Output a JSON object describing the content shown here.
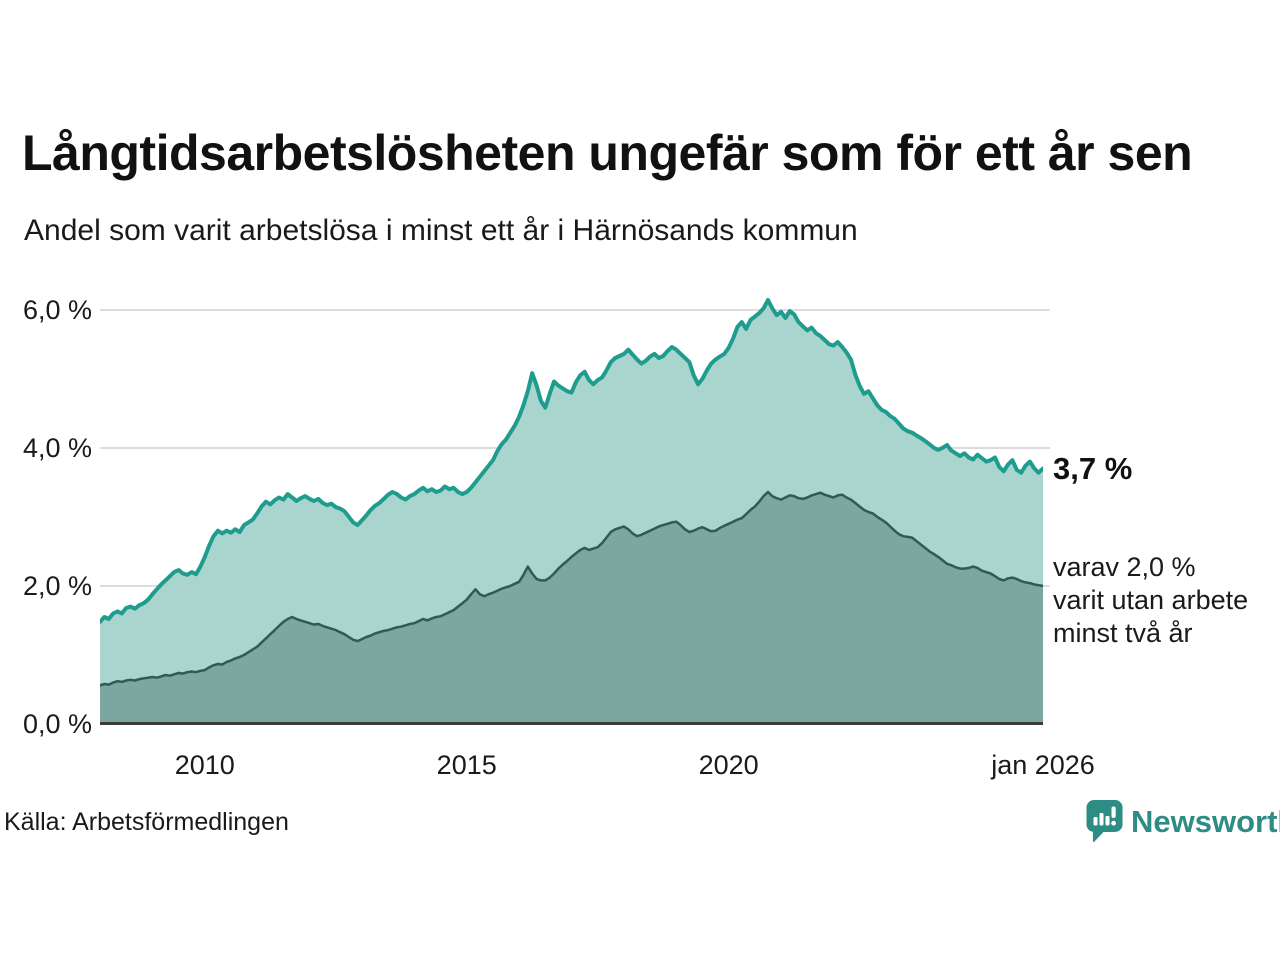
{
  "title": "Långtidsarbetslösheten ungefär som för ett år sen",
  "subtitle": "Andel som varit arbetslösa i minst ett år i Härnösands kommun",
  "source": "Källa: Arbetsförmedlingen",
  "branding": {
    "name": "Newsworthy",
    "icon": "bar-chart-speech-bubble-icon",
    "color": "#2d8c84"
  },
  "annotations": {
    "latest_total": "3,7 %",
    "secondary": "varav 2,0 %\nvarit utan arbete\nminst två år"
  },
  "colors": {
    "background": "#ffffff",
    "gridline": "#dcdcdc",
    "axis": "#3c3c3c",
    "series1_line": "#1e9c8e",
    "series1_fill": "#a9d5ce",
    "series2_line": "#2f5b55",
    "series2_fill": "#7ba7a0",
    "text": "#1a1a1a",
    "brand": "#2d8c84"
  },
  "chart_data": {
    "type": "area",
    "title": "Långtidsarbetslösheten ungefär som för ett år sen",
    "subtitle": "Andel som varit arbetslösa i minst ett år i Härnösands kommun",
    "unit": "%",
    "xlim": [
      2008,
      2026
    ],
    "ylim": [
      0,
      6.43
    ],
    "grid": "horizontal",
    "legend": "none",
    "x_axis": {
      "ticks": [
        {
          "label": "2010",
          "year": 2010
        },
        {
          "label": "2015",
          "year": 2015
        },
        {
          "label": "2020",
          "year": 2020
        },
        {
          "label": "jan 2026",
          "year": 2026
        }
      ]
    },
    "y_axis": {
      "ticks": [
        {
          "label": "0,0 %",
          "value": 0
        },
        {
          "label": "2,0 %",
          "value": 2
        },
        {
          "label": "4,0 %",
          "value": 4
        },
        {
          "label": "6,0 %",
          "value": 6
        }
      ]
    },
    "series": [
      {
        "name": "Andel arbetslösa minst ett år",
        "latest_value": 3.7,
        "start_year": 2008,
        "interval_months": 1,
        "values": [
          1.48,
          1.55,
          1.52,
          1.6,
          1.63,
          1.6,
          1.68,
          1.7,
          1.67,
          1.72,
          1.75,
          1.8,
          1.88,
          1.95,
          2.02,
          2.08,
          2.14,
          2.2,
          2.23,
          2.18,
          2.16,
          2.2,
          2.17,
          2.28,
          2.42,
          2.58,
          2.72,
          2.8,
          2.76,
          2.8,
          2.77,
          2.82,
          2.78,
          2.88,
          2.92,
          2.96,
          3.05,
          3.15,
          3.22,
          3.18,
          3.24,
          3.28,
          3.25,
          3.33,
          3.28,
          3.23,
          3.27,
          3.3,
          3.26,
          3.23,
          3.26,
          3.2,
          3.17,
          3.19,
          3.14,
          3.12,
          3.08,
          3.0,
          2.92,
          2.88,
          2.95,
          3.02,
          3.1,
          3.16,
          3.2,
          3.26,
          3.32,
          3.36,
          3.33,
          3.28,
          3.25,
          3.3,
          3.33,
          3.38,
          3.42,
          3.37,
          3.4,
          3.36,
          3.38,
          3.44,
          3.4,
          3.42,
          3.36,
          3.33,
          3.36,
          3.42,
          3.5,
          3.58,
          3.66,
          3.74,
          3.82,
          3.95,
          4.05,
          4.12,
          4.22,
          4.32,
          4.45,
          4.62,
          4.82,
          5.08,
          4.9,
          4.68,
          4.58,
          4.78,
          4.96,
          4.9,
          4.86,
          4.82,
          4.8,
          4.95,
          5.05,
          5.1,
          4.98,
          4.92,
          4.98,
          5.02,
          5.12,
          5.24,
          5.3,
          5.33,
          5.36,
          5.42,
          5.35,
          5.28,
          5.22,
          5.26,
          5.32,
          5.36,
          5.3,
          5.33,
          5.4,
          5.46,
          5.42,
          5.36,
          5.3,
          5.24,
          5.05,
          4.92,
          5.0,
          5.12,
          5.22,
          5.28,
          5.32,
          5.36,
          5.45,
          5.58,
          5.75,
          5.82,
          5.72,
          5.85,
          5.9,
          5.95,
          6.02,
          6.14,
          6.02,
          5.92,
          5.97,
          5.88,
          5.98,
          5.93,
          5.82,
          5.76,
          5.7,
          5.74,
          5.66,
          5.62,
          5.56,
          5.5,
          5.48,
          5.53,
          5.46,
          5.38,
          5.28,
          5.06,
          4.9,
          4.78,
          4.82,
          4.72,
          4.62,
          4.55,
          4.52,
          4.46,
          4.42,
          4.35,
          4.28,
          4.24,
          4.22,
          4.18,
          4.14,
          4.1,
          4.05,
          4.0,
          3.97,
          4.0,
          4.04,
          3.96,
          3.92,
          3.88,
          3.92,
          3.86,
          3.83,
          3.9,
          3.85,
          3.8,
          3.82,
          3.86,
          3.72,
          3.66,
          3.76,
          3.82,
          3.68,
          3.64,
          3.74,
          3.8,
          3.7,
          3.64,
          3.7
        ]
      },
      {
        "name": "varav utan arbete minst två år",
        "latest_value": 2.0,
        "start_year": 2008,
        "interval_months": 1,
        "values": [
          0.56,
          0.58,
          0.57,
          0.6,
          0.62,
          0.61,
          0.63,
          0.64,
          0.63,
          0.65,
          0.66,
          0.67,
          0.68,
          0.67,
          0.69,
          0.71,
          0.7,
          0.72,
          0.74,
          0.73,
          0.75,
          0.76,
          0.75,
          0.77,
          0.78,
          0.82,
          0.85,
          0.87,
          0.86,
          0.9,
          0.92,
          0.95,
          0.97,
          1.0,
          1.04,
          1.08,
          1.12,
          1.18,
          1.24,
          1.3,
          1.36,
          1.42,
          1.48,
          1.52,
          1.55,
          1.52,
          1.5,
          1.48,
          1.46,
          1.44,
          1.45,
          1.42,
          1.4,
          1.38,
          1.36,
          1.33,
          1.3,
          1.26,
          1.22,
          1.2,
          1.23,
          1.26,
          1.28,
          1.31,
          1.33,
          1.35,
          1.36,
          1.38,
          1.4,
          1.41,
          1.43,
          1.45,
          1.46,
          1.49,
          1.52,
          1.5,
          1.53,
          1.55,
          1.56,
          1.59,
          1.62,
          1.65,
          1.7,
          1.75,
          1.8,
          1.88,
          1.95,
          1.88,
          1.85,
          1.88,
          1.9,
          1.93,
          1.96,
          1.98,
          2.0,
          2.03,
          2.06,
          2.16,
          2.28,
          2.18,
          2.1,
          2.08,
          2.08,
          2.12,
          2.18,
          2.25,
          2.31,
          2.36,
          2.42,
          2.47,
          2.52,
          2.55,
          2.52,
          2.54,
          2.56,
          2.62,
          2.7,
          2.78,
          2.82,
          2.84,
          2.86,
          2.82,
          2.76,
          2.72,
          2.74,
          2.77,
          2.8,
          2.83,
          2.86,
          2.88,
          2.9,
          2.92,
          2.93,
          2.88,
          2.82,
          2.78,
          2.8,
          2.83,
          2.85,
          2.82,
          2.79,
          2.8,
          2.84,
          2.87,
          2.9,
          2.93,
          2.96,
          2.98,
          3.04,
          3.1,
          3.15,
          3.22,
          3.3,
          3.36,
          3.3,
          3.27,
          3.25,
          3.28,
          3.31,
          3.3,
          3.27,
          3.26,
          3.28,
          3.31,
          3.33,
          3.35,
          3.32,
          3.3,
          3.28,
          3.31,
          3.32,
          3.28,
          3.25,
          3.2,
          3.15,
          3.1,
          3.07,
          3.05,
          3.0,
          2.96,
          2.92,
          2.86,
          2.8,
          2.75,
          2.72,
          2.71,
          2.7,
          2.65,
          2.6,
          2.55,
          2.5,
          2.46,
          2.42,
          2.37,
          2.32,
          2.3,
          2.27,
          2.25,
          2.25,
          2.26,
          2.28,
          2.26,
          2.22,
          2.2,
          2.18,
          2.14,
          2.1,
          2.08,
          2.11,
          2.12,
          2.1,
          2.07,
          2.05,
          2.04,
          2.02,
          2.01,
          2.0
        ]
      }
    ]
  }
}
